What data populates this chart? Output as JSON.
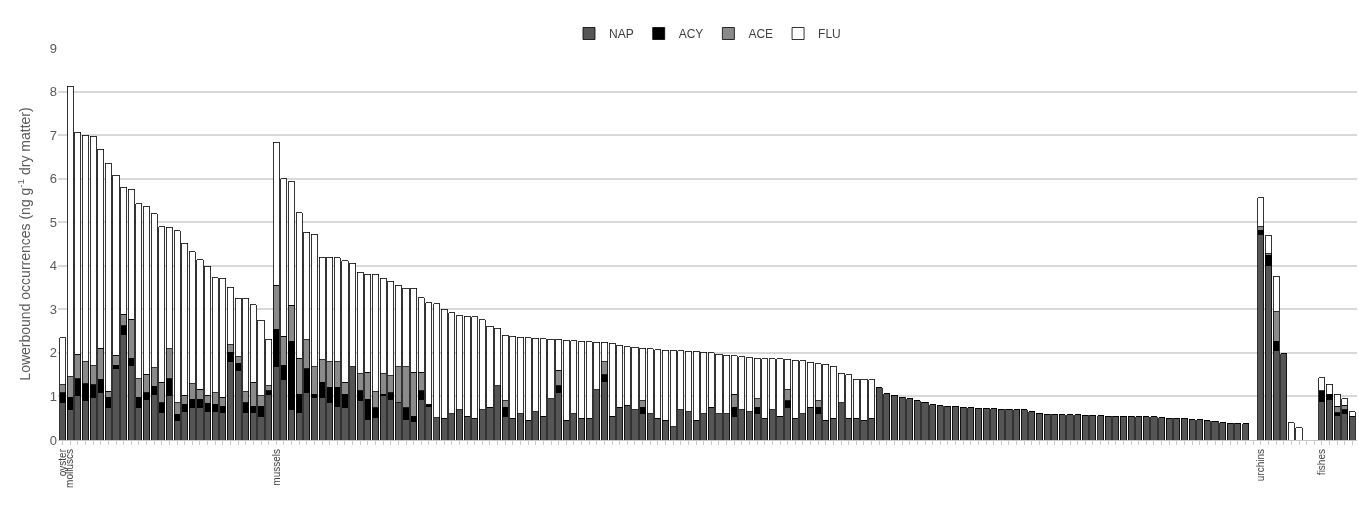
{
  "chart_data": {
    "type": "bar",
    "stacked": true,
    "ylabel": "Lowerbound occurrences (ng g$^{-1}$ dry matter)",
    "categories": [
      "oyster",
      "molluscs",
      null,
      null,
      null,
      null,
      null,
      null,
      null,
      null,
      null,
      null,
      null,
      null,
      null,
      null,
      null,
      null,
      null,
      null,
      null,
      null,
      null,
      null,
      null,
      null,
      null,
      null,
      "mussels",
      null,
      null,
      null,
      null,
      null,
      null,
      null,
      null,
      null,
      null,
      null,
      null,
      null,
      null,
      null,
      null,
      null,
      null,
      null,
      null,
      null,
      null,
      null,
      null,
      null,
      null,
      null,
      null,
      null,
      null,
      null,
      null,
      null,
      null,
      null,
      null,
      null,
      null,
      null,
      null,
      null,
      null,
      null,
      null,
      null,
      null,
      null,
      null,
      null,
      null,
      null,
      null,
      null,
      null,
      null,
      null,
      null,
      null,
      null,
      null,
      null,
      null,
      null,
      null,
      null,
      null,
      null,
      null,
      null,
      null,
      null,
      null,
      null,
      null,
      null,
      null,
      null,
      null,
      null,
      null,
      null,
      null,
      null,
      null,
      null,
      null,
      null,
      null,
      null,
      null,
      null,
      null,
      null,
      null,
      null,
      null,
      null,
      null,
      null,
      null,
      null,
      null,
      null,
      null,
      null,
      null,
      null,
      null,
      null,
      null,
      null,
      null,
      null,
      null,
      null,
      null,
      null,
      null,
      null,
      null,
      null,
      null,
      null,
      null,
      null,
      null,
      null,
      null,
      "urchins",
      null,
      null,
      null,
      null,
      null,
      null,
      null,
      "fishes",
      null,
      null,
      null,
      null
    ],
    "series": [
      {
        "name": "NAP",
        "color": "#555555",
        "values": [
          0.86,
          0.7,
          1.02,
          0.9,
          0.98,
          1.09,
          0.74,
          1.64,
          2.42,
          1.72,
          0.74,
          0.94,
          1.05,
          0.63,
          1.02,
          0.45,
          0.66,
          0.74,
          0.74,
          0.66,
          0.66,
          0.63,
          1.8,
          1.6,
          0.63,
          0.63,
          0.55,
          1.05,
          1.68,
          1.4,
          0.7,
          0.63,
          1.09,
          0.98,
          0.98,
          0.86,
          0.78,
          0.74,
          1.68,
          0.9,
          0.47,
          0.51,
          1.02,
          0.94,
          0.86,
          0.47,
          0.43,
          0.94,
          0.78,
          0.51,
          0.5,
          0.6,
          0.7,
          0.55,
          0.5,
          0.7,
          0.75,
          1.25,
          0.55,
          0.5,
          0.6,
          0.45,
          0.65,
          0.55,
          0.95,
          1.1,
          0.45,
          0.6,
          0.5,
          0.5,
          1.15,
          1.35,
          0.55,
          0.75,
          0.8,
          0.7,
          0.6,
          0.6,
          0.5,
          0.45,
          0.3,
          0.7,
          0.65,
          0.45,
          0.6,
          0.75,
          0.6,
          0.6,
          0.55,
          0.7,
          0.65,
          0.6,
          0.5,
          0.7,
          0.55,
          0.75,
          0.5,
          0.6,
          0.75,
          0.6,
          0.45,
          0.5,
          0.85,
          0.5,
          0.5,
          0.45,
          0.5,
          1.2,
          1.06,
          1.03,
          0.98,
          0.95,
          0.9,
          0.87,
          0.81,
          0.79,
          0.77,
          0.76,
          0.75,
          0.74,
          0.73,
          0.73,
          0.72,
          0.71,
          0.71,
          0.7,
          0.69,
          0.65,
          0.6,
          0.59,
          0.59,
          0.58,
          0.58,
          0.58,
          0.57,
          0.57,
          0.56,
          0.55,
          0.55,
          0.54,
          0.54,
          0.53,
          0.53,
          0.53,
          0.51,
          0.5,
          0.5,
          0.49,
          0.47,
          0.46,
          0.44,
          0.43,
          0.4,
          0.38,
          0.38,
          0.37,
          null,
          4.72,
          4.0,
          2.05,
          1.98,
          0,
          0,
          null,
          null,
          0.89,
          0.93,
          0.57,
          0.61,
          0.55
        ]
      },
      {
        "name": "ACY",
        "color": "#000000",
        "values": [
          0.23,
          0.28,
          0.39,
          0.39,
          0.29,
          0.3,
          0.24,
          0.08,
          0.2,
          0.16,
          0.24,
          0.15,
          0.18,
          0.23,
          0.39,
          0.14,
          0.16,
          0.2,
          0.2,
          0.18,
          0.16,
          0.14,
          0.22,
          0.16,
          0.23,
          0.15,
          0.23,
          0.08,
          0.86,
          0.32,
          1.57,
          0.42,
          0.55,
          0.07,
          0.35,
          0.35,
          0.43,
          0.31,
          0,
          0.23,
          0.47,
          0.23,
          0.03,
          0.15,
          0,
          0.27,
          0.12,
          0.19,
          0.04,
          0,
          0,
          0,
          0,
          0,
          0,
          0,
          0,
          0,
          0.2,
          0,
          0,
          0,
          0,
          0,
          0,
          0.15,
          0,
          0,
          0,
          0,
          0,
          0.15,
          0,
          0,
          0,
          0,
          0.15,
          0,
          0,
          0,
          0,
          0,
          0,
          0,
          0,
          0,
          0,
          0,
          0.2,
          0,
          0,
          0.15,
          0,
          0,
          0,
          0.15,
          0,
          0,
          0,
          0.15,
          0,
          0,
          0,
          0,
          0,
          0,
          0,
          0,
          0,
          0,
          0,
          0,
          0,
          0,
          0,
          0,
          0,
          0,
          0,
          0,
          0,
          0,
          0,
          0,
          0,
          0,
          0,
          0,
          0,
          0,
          0,
          0,
          0,
          0,
          0,
          0,
          0,
          0,
          0,
          0,
          0,
          0,
          0,
          0,
          0,
          0,
          0,
          0,
          0,
          0,
          0,
          0,
          0,
          0,
          0,
          0,
          null,
          0.1,
          0.24,
          0.22,
          0,
          0,
          0,
          null,
          null,
          0.24,
          0.12,
          0.06,
          0.09,
          0
        ]
      },
      {
        "name": "ACE",
        "color": "#8a8a8a",
        "values": [
          0.18,
          0.47,
          0.56,
          0.51,
          0.43,
          0.72,
          0.14,
          0.23,
          0.27,
          0.89,
          0.43,
          0.42,
          0.43,
          0.47,
          0.68,
          0.27,
          0.21,
          0.35,
          0.23,
          0.19,
          0.26,
          0.21,
          0.17,
          0.15,
          0.25,
          0.55,
          0.24,
          0.12,
          1.01,
          0.66,
          0.82,
          0.83,
          0.66,
          0.63,
          0.51,
          0.59,
          0.59,
          0.28,
          0,
          0.39,
          0.62,
          0.37,
          0.47,
          0.39,
          0.82,
          0.94,
          1.01,
          0.43,
          0,
          0,
          0,
          0,
          0,
          0,
          0,
          0,
          0,
          0,
          0.15,
          0,
          0,
          0,
          0,
          0,
          0,
          0.35,
          0,
          0,
          0,
          0,
          0,
          0.3,
          0,
          0,
          0,
          0,
          0.15,
          0,
          0,
          0,
          0,
          0,
          0,
          0,
          0,
          0,
          0,
          0,
          0.3,
          0,
          0,
          0.2,
          0,
          0,
          0,
          0.25,
          0,
          0,
          0,
          0.15,
          0,
          0,
          0,
          0,
          0,
          0,
          0,
          0,
          0,
          0,
          0,
          0,
          0,
          0,
          0,
          0,
          0,
          0,
          0,
          0,
          0,
          0,
          0,
          0,
          0,
          0,
          0,
          0,
          0,
          0,
          0,
          0,
          0,
          0,
          0,
          0,
          0,
          0,
          0,
          0,
          0,
          0,
          0,
          0,
          0,
          0,
          0,
          0,
          0,
          0,
          0,
          0,
          0,
          0,
          0,
          0,
          null,
          0.08,
          0.04,
          0.67,
          0,
          0,
          0,
          null,
          null,
          0,
          0,
          0.14,
          0.1,
          0
        ]
      },
      {
        "name": "FLU",
        "color": "#ffffff",
        "values": [
          1.08,
          6.67,
          5.1,
          5.2,
          5.27,
          4.57,
          5.23,
          4.13,
          2.91,
          2.99,
          4.01,
          3.84,
          3.54,
          3.57,
          2.79,
          3.94,
          3.49,
          3.03,
          2.97,
          2.96,
          2.65,
          2.73,
          1.32,
          1.35,
          2.14,
          1.77,
          1.73,
          1.06,
          3.29,
          3.62,
          2.84,
          3.34,
          2.47,
          3.04,
          2.36,
          2.4,
          2.38,
          2.79,
          2.38,
          2.33,
          2.25,
          2.69,
          2.19,
          2.17,
          1.87,
          1.8,
          1.92,
          1.71,
          2.33,
          2.62,
          2.5,
          2.32,
          2.15,
          2.29,
          2.33,
          2.06,
          1.86,
          1.32,
          1.51,
          1.88,
          1.76,
          1.9,
          1.69,
          1.78,
          1.36,
          0.71,
          1.84,
          1.68,
          1.77,
          1.76,
          1.1,
          0.45,
          1.67,
          1.43,
          1.34,
          1.43,
          1.21,
          1.49,
          1.57,
          1.61,
          1.76,
          1.35,
          1.39,
          1.59,
          1.42,
          1.25,
          1.37,
          1.35,
          0.88,
          1.21,
          1.24,
          0.93,
          1.37,
          1.17,
          1.31,
          0.7,
          1.33,
          1.22,
          1.03,
          0.85,
          1.29,
          1.19,
          0.68,
          1.0,
          0.9,
          0.95,
          0.88,
          0,
          0,
          0,
          0,
          0,
          0,
          0,
          0,
          0,
          0,
          0,
          0,
          0,
          0,
          0,
          0,
          0,
          0,
          0,
          0,
          0,
          0,
          0,
          0,
          0,
          0,
          0,
          0,
          0,
          0,
          0,
          0,
          0,
          0,
          0,
          0,
          0,
          0,
          0,
          0,
          0,
          0,
          0,
          0,
          0,
          0,
          0,
          0,
          0,
          null,
          0.66,
          0.41,
          0.82,
          0,
          0.4,
          0.28,
          null,
          null,
          0.3,
          0.23,
          0.28,
          0.15,
          0.1
        ]
      }
    ],
    "ylim": [
      0,
      9
    ],
    "yticks": [
      0,
      1,
      2,
      3,
      4,
      5,
      6,
      7,
      8,
      9
    ],
    "grid": "y",
    "legend": "top"
  }
}
